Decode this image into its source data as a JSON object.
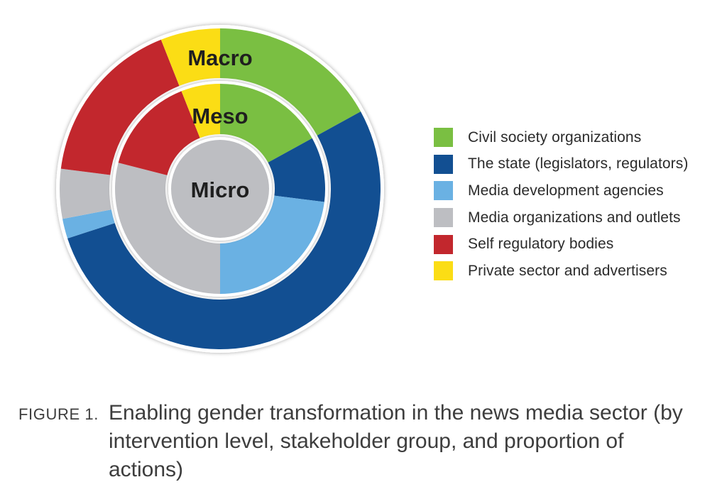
{
  "chart_data": {
    "type": "pie",
    "subtype": "nested-donut",
    "rings": [
      {
        "name": "Macro",
        "slices": [
          {
            "category": "Civil society organizations",
            "value": 17
          },
          {
            "category": "The state (legislators, regulators)",
            "value": 53
          },
          {
            "category": "Media development agencies",
            "value": 2
          },
          {
            "category": "Media organizations and outlets",
            "value": 5
          },
          {
            "category": "Self regulatory bodies",
            "value": 17
          },
          {
            "category": "Private sector and advertisers",
            "value": 6
          }
        ]
      },
      {
        "name": "Meso",
        "slices": [
          {
            "category": "Civil society organizations",
            "value": 17
          },
          {
            "category": "The state (legislators, regulators)",
            "value": 10
          },
          {
            "category": "Media development agencies",
            "value": 23
          },
          {
            "category": "Media organizations and outlets",
            "value": 29
          },
          {
            "category": "Self regulatory bodies",
            "value": 15
          },
          {
            "category": "Private sector and advertisers",
            "value": 6
          }
        ]
      },
      {
        "name": "Micro",
        "slices": [
          {
            "category": "Media organizations and outlets",
            "value": 100
          }
        ]
      }
    ],
    "legend": {
      "position": "right",
      "items": [
        {
          "label": "Civil society organizations",
          "color": "#7abf42"
        },
        {
          "label": "The state (legislators, regulators)",
          "color": "#124f92"
        },
        {
          "label": "Media development agencies",
          "color": "#6ab1e3"
        },
        {
          "label": "Media organizations and outlets",
          "color": "#bdbec2"
        },
        {
          "label": "Self regulatory bodies",
          "color": "#c2272d"
        },
        {
          "label": "Private sector and advertisers",
          "color": "#fbdd15"
        }
      ]
    }
  },
  "caption": {
    "tag": "FIGURE 1.",
    "text": "Enabling gender transformation in the news media sector (by intervention level, stakeholder group, and proportion of actions)"
  }
}
